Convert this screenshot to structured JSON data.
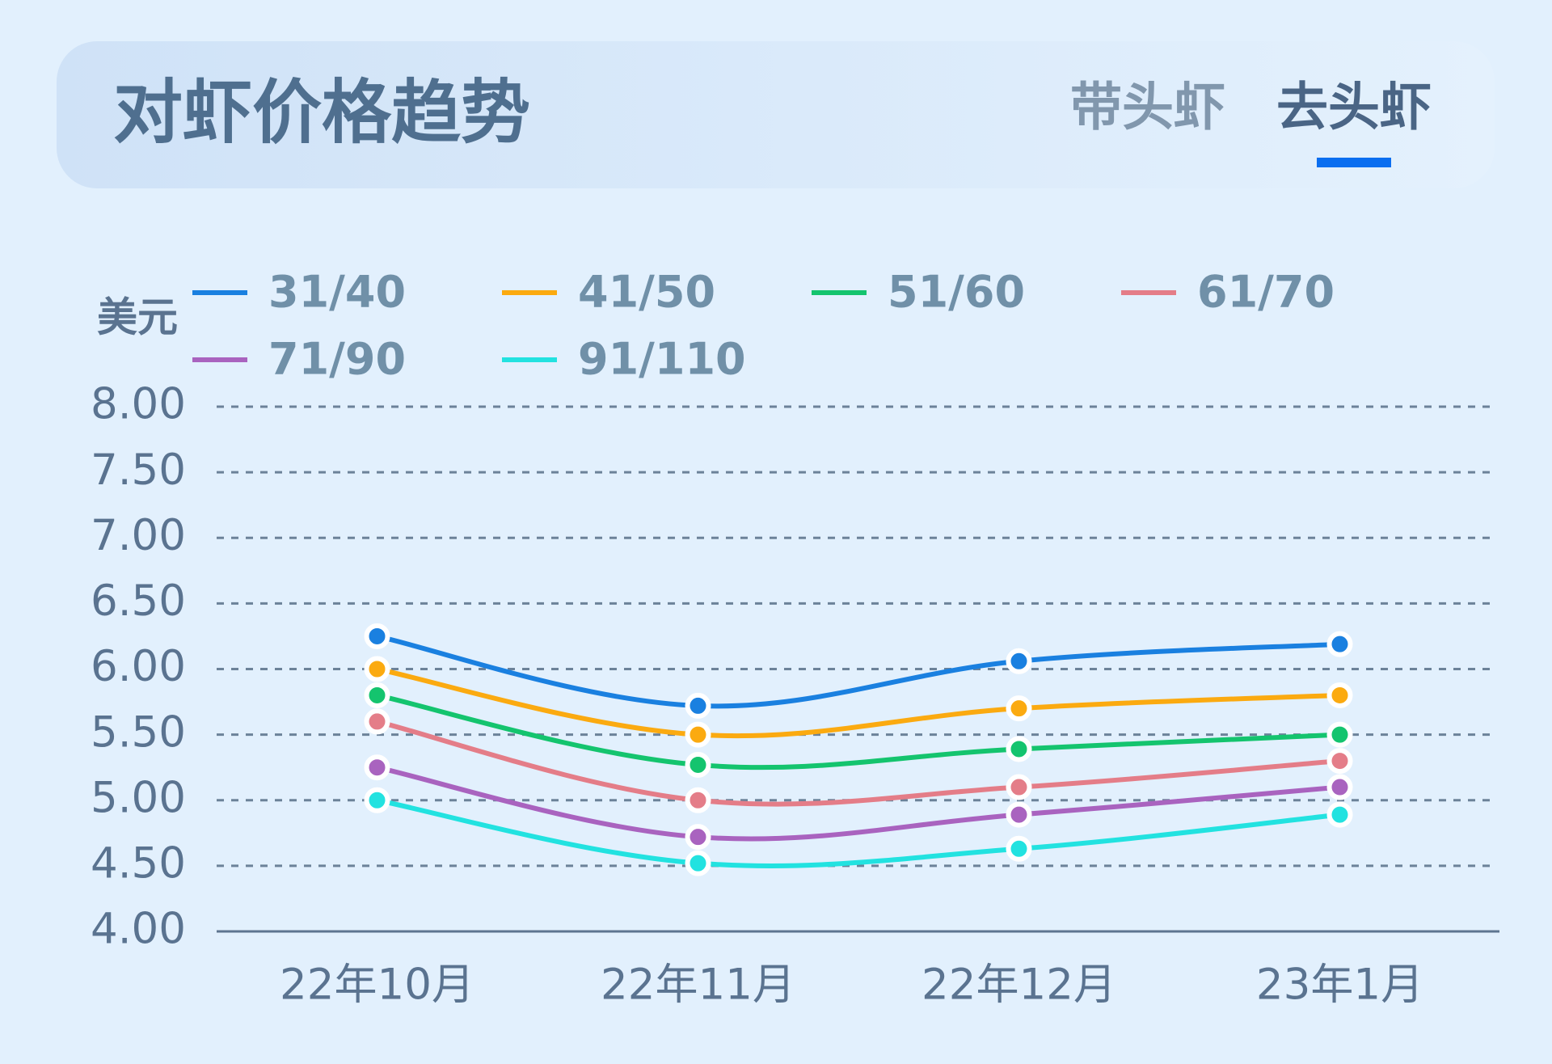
{
  "chart_data": {
    "type": "line",
    "title": "对虾价格趋势",
    "tabs": [
      "带头虾",
      "去头虾"
    ],
    "active_tab": 1,
    "y_label": "美元",
    "categories": [
      "22年10月",
      "22年11月",
      "22年12月",
      "23年1月"
    ],
    "series": [
      {
        "name": "31/40",
        "color": "#1a80e0",
        "values": [
          6.25,
          5.72,
          6.06,
          6.19
        ]
      },
      {
        "name": "41/50",
        "color": "#fbaa10",
        "values": [
          6.0,
          5.5,
          5.7,
          5.8
        ]
      },
      {
        "name": "51/60",
        "color": "#14c46e",
        "values": [
          5.8,
          5.27,
          5.39,
          5.5
        ]
      },
      {
        "name": "61/70",
        "color": "#e47d88",
        "values": [
          5.6,
          5.0,
          5.1,
          5.3
        ]
      },
      {
        "name": "71/90",
        "color": "#a963bf",
        "values": [
          5.25,
          4.72,
          4.89,
          5.1
        ]
      },
      {
        "name": "91/110",
        "color": "#22e2e0",
        "values": [
          5.0,
          4.52,
          4.63,
          4.89
        ]
      }
    ],
    "ylim": [
      4,
      8
    ],
    "yticks": [
      {
        "value": 4,
        "label": "4.00"
      },
      {
        "value": 4.5,
        "label": "4.50"
      },
      {
        "value": 5,
        "label": "5.00"
      },
      {
        "value": 5.5,
        "label": "5.50"
      },
      {
        "value": 6,
        "label": "6.00"
      },
      {
        "value": 6.5,
        "label": "6.50"
      },
      {
        "value": 7,
        "label": "7.00"
      },
      {
        "value": 7.5,
        "label": "7.50"
      },
      {
        "value": 8,
        "label": "8.00"
      }
    ],
    "grid": true
  }
}
